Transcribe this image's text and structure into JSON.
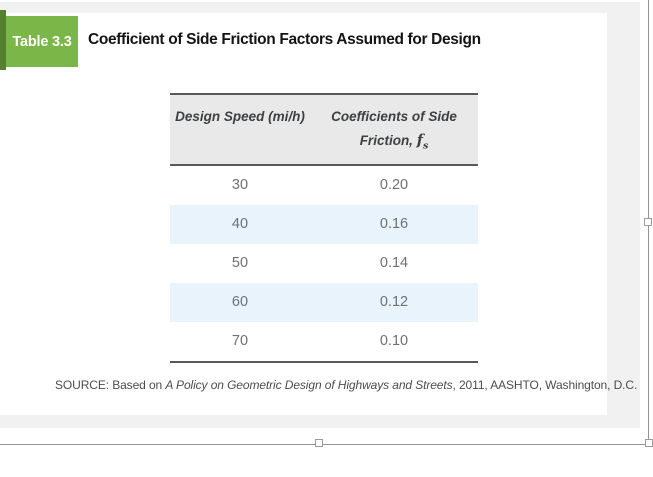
{
  "figure": {
    "badge": "Table 3.3",
    "title": "Coefficient of Side Friction Factors Assumed for Design",
    "table": {
      "header_col1": "Design Speed (mi/h)",
      "header_col2_line1": "Coefficients of Side",
      "header_col2_line2": "Friction, ",
      "header_col2_symbol": "f",
      "header_col2_symbol_sub": "s",
      "rows": [
        {
          "speed": "30",
          "coefficient": "0.20"
        },
        {
          "speed": "40",
          "coefficient": "0.16"
        },
        {
          "speed": "50",
          "coefficient": "0.14"
        },
        {
          "speed": "60",
          "coefficient": "0.12"
        },
        {
          "speed": "70",
          "coefficient": "0.10"
        }
      ]
    },
    "source": {
      "prefix": "SOURCE: Based on ",
      "reference": "A Policy on Geometric Design of Highways and Streets",
      "suffix": ", 2011, AASHTO, Washington, D.C."
    },
    "colors": {
      "badge_green": "#7ab648",
      "badge_green_dark": "#55802d",
      "header_bg": "#e9e9e9",
      "row_highlight": "#e9f3fb",
      "table_border": "#595959"
    }
  }
}
